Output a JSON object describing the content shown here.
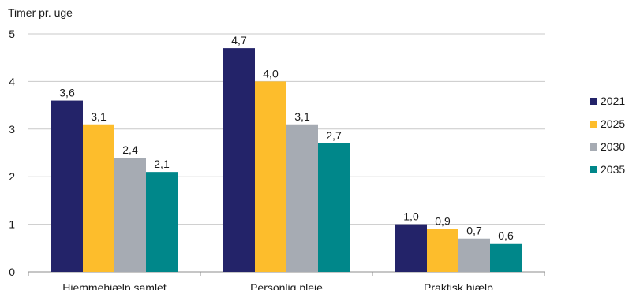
{
  "chart_data": {
    "type": "bar",
    "ylabel": "Timer pr. uge",
    "ylim": [
      0,
      5
    ],
    "yticks": [
      "0",
      "1",
      "2",
      "3",
      "4",
      "5"
    ],
    "categories": [
      "Hjemmehjælp samlet",
      "Personlig pleje",
      "Praktisk hjælp"
    ],
    "series": [
      {
        "name": "2021",
        "color": "#232369",
        "values": [
          3.6,
          4.7,
          1.0
        ],
        "labels": [
          "3,6",
          "4,7",
          "1,0"
        ]
      },
      {
        "name": "2025",
        "color": "#FDBD2C",
        "values": [
          3.1,
          4.0,
          0.9
        ],
        "labels": [
          "3,1",
          "4,0",
          "0,9"
        ]
      },
      {
        "name": "2030",
        "color": "#A6ABB3",
        "values": [
          2.4,
          3.1,
          0.7
        ],
        "labels": [
          "2,4",
          "3,1",
          "0,7"
        ]
      },
      {
        "name": "2035",
        "color": "#00878A",
        "values": [
          2.1,
          2.7,
          0.6
        ],
        "labels": [
          "2,1",
          "2,7",
          "0,6"
        ]
      }
    ],
    "grid": true,
    "legend": "right"
  }
}
